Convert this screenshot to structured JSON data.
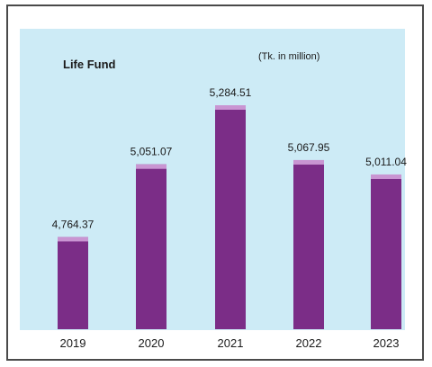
{
  "colors": {
    "background": "#cdebf6",
    "bar": "#7b2d87",
    "bar_top": "#c995d2",
    "border": "#4a4a4a"
  },
  "chart_data": {
    "type": "bar",
    "title": "Life Fund",
    "unit_note": "(Tk. in million)",
    "categories": [
      "2019",
      "2020",
      "2021",
      "2022",
      "2023"
    ],
    "values": [
      4764.37,
      5051.07,
      5284.51,
      5067.95,
      5011.04
    ],
    "data_labels": [
      "4,764.37",
      "5,051.07",
      "5,284.51",
      "5,067.95",
      "5,011.04"
    ],
    "xlabel": "",
    "ylabel": "",
    "ylim": [
      4400,
      5400
    ],
    "grid": false,
    "legend": "none"
  }
}
